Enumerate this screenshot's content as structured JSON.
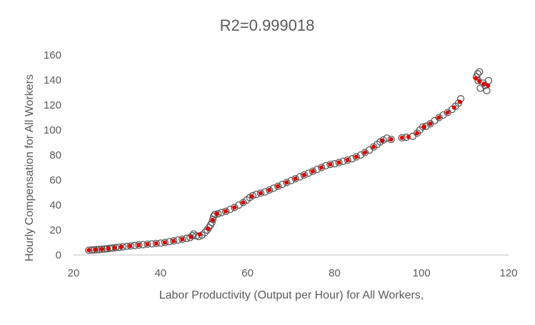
{
  "chart_data": {
    "type": "scatter",
    "title": "R2=0.999018",
    "xlabel": "Labor Productivity (Output per Hour) for All Workers,",
    "ylabel": "Hourly Compensation for All Workers",
    "xlim": [
      20,
      120
    ],
    "ylim": [
      0,
      160
    ],
    "xticks": [
      "20",
      "40",
      "60",
      "80",
      "100",
      "120"
    ],
    "yticks": [
      "0",
      "20",
      "40",
      "60",
      "80",
      "100",
      "120",
      "140",
      "160"
    ],
    "grid": false,
    "legend": "none",
    "colors": {
      "actual": "#595959",
      "fitted": "#e00000",
      "axis": "#bfbfbf",
      "text": "#595959"
    },
    "series": [
      {
        "marker": "open-circle",
        "points": [
          [
            23.5,
            3.8
          ],
          [
            24.2,
            4.0
          ],
          [
            24.8,
            4.1
          ],
          [
            25.3,
            4.3
          ],
          [
            25.9,
            4.4
          ],
          [
            26.5,
            4.6
          ],
          [
            27.1,
            4.8
          ],
          [
            27.7,
            5.0
          ],
          [
            28.3,
            5.3
          ],
          [
            29.0,
            5.6
          ],
          [
            29.7,
            5.9
          ],
          [
            30.5,
            6.2
          ],
          [
            31.3,
            6.5
          ],
          [
            32.2,
            6.9
          ],
          [
            33.1,
            7.2
          ],
          [
            34.0,
            7.6
          ],
          [
            35.0,
            8.0
          ],
          [
            36.0,
            8.3
          ],
          [
            37.0,
            8.6
          ],
          [
            38.0,
            8.9
          ],
          [
            39.0,
            9.2
          ],
          [
            40.0,
            9.5
          ],
          [
            41.0,
            10.0
          ],
          [
            42.0,
            10.6
          ],
          [
            43.0,
            11.3
          ],
          [
            44.0,
            12.0
          ],
          [
            45.0,
            12.6
          ],
          [
            46.0,
            13.3
          ],
          [
            46.8,
            14.0
          ],
          [
            47.3,
            15.5
          ],
          [
            47.6,
            16.8
          ],
          [
            48.2,
            15.4
          ],
          [
            48.8,
            14.8
          ],
          [
            49.5,
            16.0
          ],
          [
            50.2,
            18.0
          ],
          [
            50.7,
            20.0
          ],
          [
            51.1,
            22.0
          ],
          [
            51.5,
            24.0
          ],
          [
            51.8,
            26.0
          ],
          [
            52.0,
            28.5
          ],
          [
            52.2,
            31.0
          ],
          [
            52.5,
            32.5
          ],
          [
            53.2,
            33.0
          ],
          [
            54.0,
            34.0
          ],
          [
            55.0,
            35.0
          ],
          [
            56.0,
            36.5
          ],
          [
            57.0,
            38.0
          ],
          [
            58.0,
            40.0
          ],
          [
            59.0,
            42.0
          ],
          [
            59.8,
            44.0
          ],
          [
            60.5,
            46.0
          ],
          [
            61.2,
            47.5
          ],
          [
            62.0,
            48.5
          ],
          [
            63.0,
            49.5
          ],
          [
            64.0,
            50.5
          ],
          [
            65.0,
            52.0
          ],
          [
            66.0,
            53.5
          ],
          [
            67.0,
            55.0
          ],
          [
            68.0,
            56.5
          ],
          [
            69.0,
            58.0
          ],
          [
            70.0,
            59.5
          ],
          [
            71.0,
            61.0
          ],
          [
            72.0,
            62.5
          ],
          [
            73.0,
            64.0
          ],
          [
            74.0,
            65.5
          ],
          [
            75.0,
            67.0
          ],
          [
            76.0,
            68.5
          ],
          [
            77.0,
            70.0
          ],
          [
            78.0,
            71.5
          ],
          [
            79.0,
            72.5
          ],
          [
            80.0,
            73.0
          ],
          [
            81.0,
            74.0
          ],
          [
            82.0,
            75.0
          ],
          [
            83.0,
            76.0
          ],
          [
            84.0,
            77.0
          ],
          [
            85.0,
            78.5
          ],
          [
            86.0,
            80.0
          ],
          [
            87.0,
            82.0
          ],
          [
            88.0,
            84.0
          ],
          [
            89.0,
            86.5
          ],
          [
            89.8,
            88.5
          ],
          [
            90.5,
            90.5
          ],
          [
            91.2,
            92.0
          ],
          [
            92.0,
            93.5
          ],
          [
            93.0,
            92.5
          ],
          [
            95.5,
            93.8
          ],
          [
            96.5,
            94.2
          ],
          [
            98.0,
            95.0
          ],
          [
            99.0,
            97.5
          ],
          [
            99.6,
            100.0
          ],
          [
            100.3,
            102.5
          ],
          [
            101.0,
            103.0
          ],
          [
            102.0,
            105.0
          ],
          [
            103.0,
            107.5
          ],
          [
            104.0,
            110.0
          ],
          [
            105.0,
            112.0
          ],
          [
            106.0,
            114.0
          ],
          [
            107.0,
            116.5
          ],
          [
            107.8,
            119.0
          ],
          [
            108.5,
            121.5
          ],
          [
            109.0,
            125.0
          ],
          [
            112.6,
            142.5
          ],
          [
            112.9,
            145.0
          ],
          [
            113.3,
            146.5
          ],
          [
            113.0,
            139.5
          ],
          [
            113.5,
            133.5
          ],
          [
            114.2,
            137.5
          ],
          [
            114.6,
            135.5
          ],
          [
            115.0,
            131.5
          ],
          [
            115.4,
            139.5
          ]
        ]
      },
      {
        "marker": "filled-dot",
        "points": [
          [
            23.5,
            3.9
          ],
          [
            25.0,
            4.2
          ],
          [
            26.5,
            4.6
          ],
          [
            28.0,
            5.2
          ],
          [
            29.5,
            5.8
          ],
          [
            31.0,
            6.5
          ],
          [
            33.0,
            7.2
          ],
          [
            35.0,
            8.0
          ],
          [
            37.0,
            8.6
          ],
          [
            39.0,
            9.2
          ],
          [
            41.0,
            10.0
          ],
          [
            43.0,
            11.3
          ],
          [
            45.0,
            12.6
          ],
          [
            47.0,
            14.5
          ],
          [
            49.0,
            16.5
          ],
          [
            51.0,
            21.0
          ],
          [
            52.0,
            28.0
          ],
          [
            53.0,
            33.0
          ],
          [
            55.0,
            35.0
          ],
          [
            57.0,
            38.0
          ],
          [
            59.0,
            42.0
          ],
          [
            61.0,
            47.0
          ],
          [
            63.0,
            49.5
          ],
          [
            65.0,
            52.0
          ],
          [
            67.0,
            55.0
          ],
          [
            69.0,
            58.0
          ],
          [
            71.0,
            61.0
          ],
          [
            73.0,
            64.0
          ],
          [
            75.0,
            67.0
          ],
          [
            77.0,
            70.0
          ],
          [
            79.0,
            72.5
          ],
          [
            81.0,
            74.0
          ],
          [
            83.0,
            76.0
          ],
          [
            85.0,
            78.5
          ],
          [
            87.0,
            82.0
          ],
          [
            89.0,
            86.5
          ],
          [
            91.0,
            91.5
          ],
          [
            93.0,
            92.5
          ],
          [
            95.5,
            93.8
          ],
          [
            97.0,
            94.5
          ],
          [
            99.0,
            97.5
          ],
          [
            100.5,
            102.5
          ],
          [
            102.0,
            105.0
          ],
          [
            104.0,
            110.0
          ],
          [
            106.0,
            114.0
          ],
          [
            107.5,
            118.0
          ],
          [
            108.8,
            122.5
          ],
          [
            112.5,
            141.5
          ],
          [
            113.3,
            139.0
          ],
          [
            114.3,
            137.0
          ],
          [
            115.3,
            135.5
          ]
        ]
      }
    ]
  }
}
